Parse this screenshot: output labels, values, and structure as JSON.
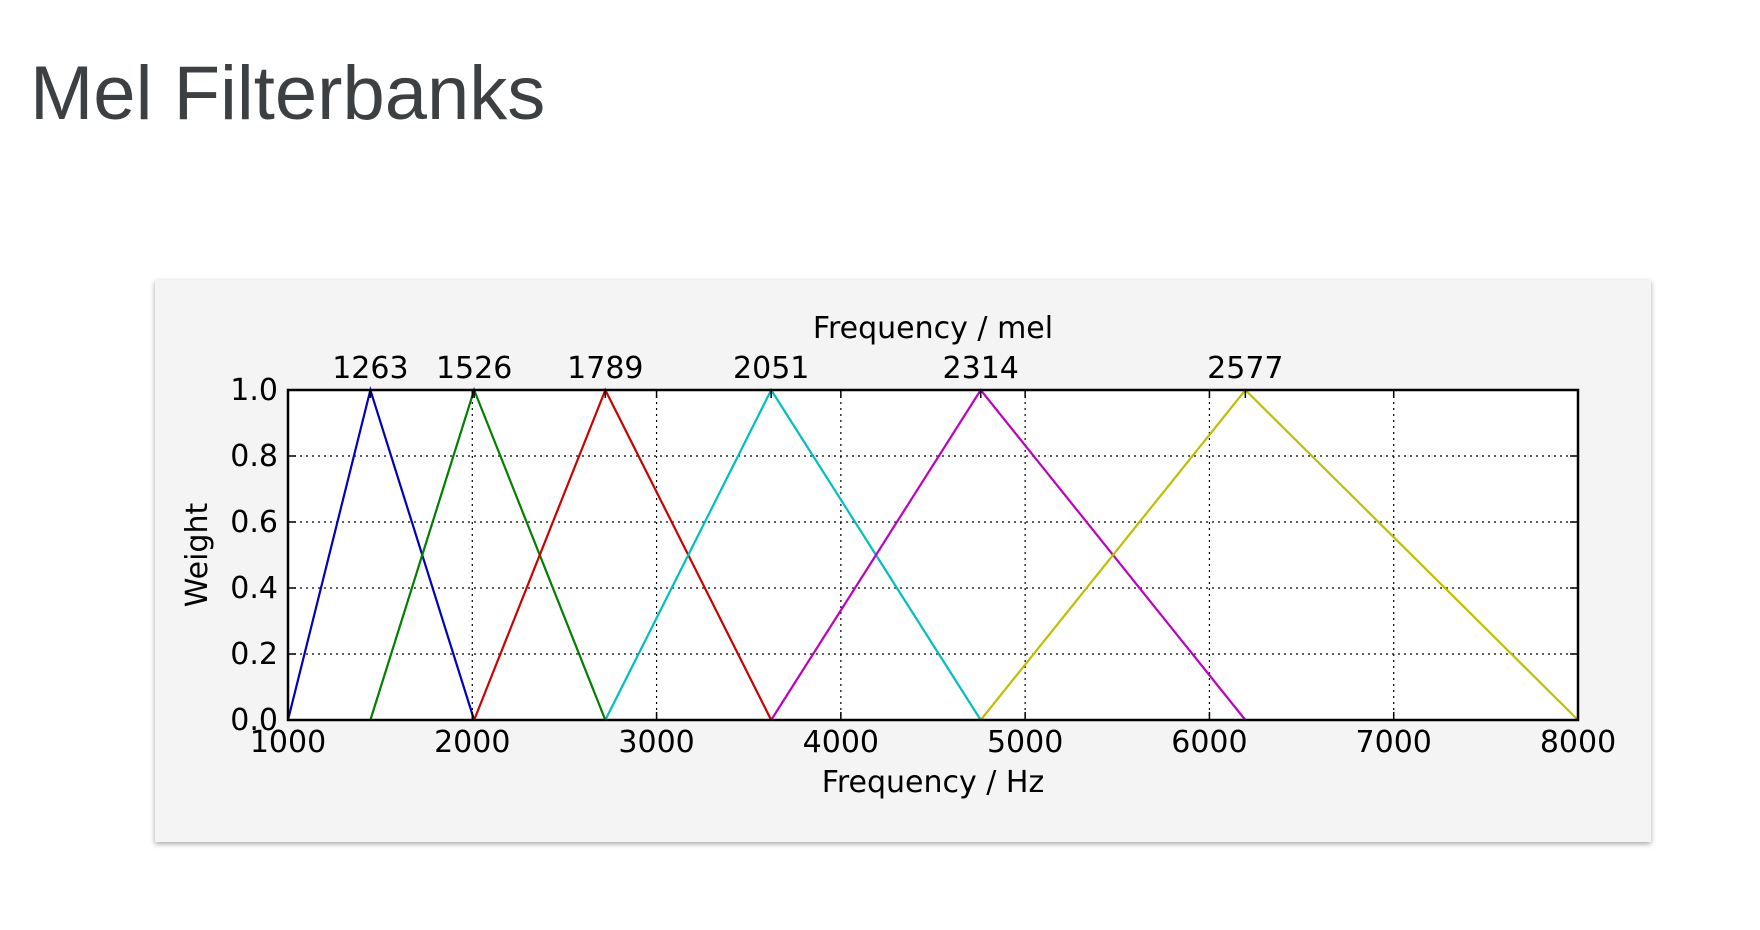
{
  "slide": {
    "title": "Mel Filterbanks"
  },
  "chart_data": {
    "type": "line",
    "title": "",
    "xlabel": "Frequency / Hz",
    "ylabel": "Weight",
    "top_xlabel": "Frequency / mel",
    "xlim": [
      1000,
      8000
    ],
    "ylim": [
      0.0,
      1.0
    ],
    "x_ticks": [
      "1000",
      "2000",
      "3000",
      "4000",
      "5000",
      "6000",
      "7000",
      "8000"
    ],
    "y_ticks": [
      "0.0",
      "0.2",
      "0.4",
      "0.6",
      "0.8",
      "1.0"
    ],
    "x_tick_values": [
      1000,
      2000,
      3000,
      4000,
      5000,
      6000,
      7000,
      8000
    ],
    "y_tick_values": [
      0.0,
      0.2,
      0.4,
      0.6,
      0.8,
      1.0
    ],
    "top_ticks": [
      {
        "label": "1263",
        "hz": 1447
      },
      {
        "label": "1526",
        "hz": 2010
      },
      {
        "label": "1789",
        "hz": 2722
      },
      {
        "label": "2051",
        "hz": 3622
      },
      {
        "label": "2314",
        "hz": 4759
      },
      {
        "label": "2577",
        "hz": 6195
      }
    ],
    "grid": true,
    "series": [
      {
        "color": "#0000bf",
        "x": [
          1000,
          1447,
          2010
        ],
        "y": [
          0,
          1,
          0
        ]
      },
      {
        "color": "#007f00",
        "x": [
          1447,
          2010,
          2722
        ],
        "y": [
          0,
          1,
          0
        ]
      },
      {
        "color": "#cc0000",
        "x": [
          2010,
          2722,
          3622
        ],
        "y": [
          0,
          1,
          0
        ]
      },
      {
        "color": "#00bfbf",
        "x": [
          2722,
          3622,
          4759
        ],
        "y": [
          0,
          1,
          0
        ]
      },
      {
        "color": "#bf00bf",
        "x": [
          3622,
          4759,
          6195
        ],
        "y": [
          0,
          1,
          0
        ]
      },
      {
        "color": "#bfbf00",
        "x": [
          4759,
          6195,
          8000
        ],
        "y": [
          0,
          1,
          0
        ]
      }
    ]
  }
}
